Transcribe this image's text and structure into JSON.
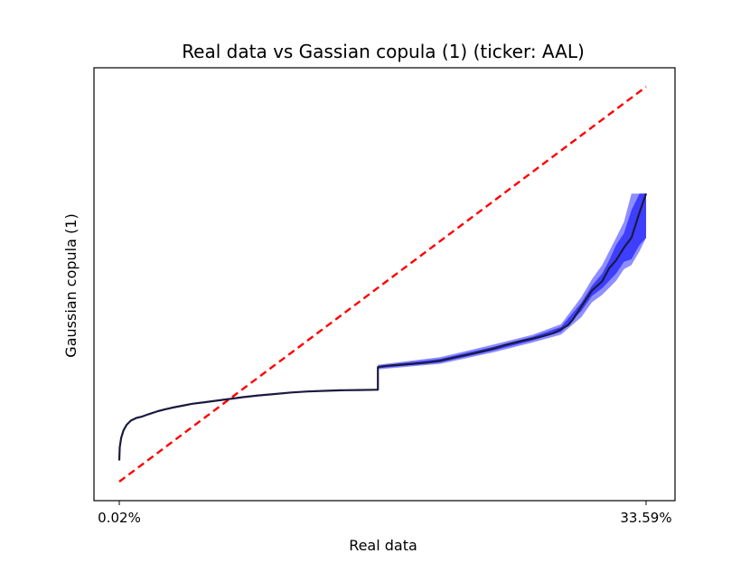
{
  "chart_data": {
    "type": "line",
    "title": "Real data vs Gassian copula (1) (ticker: AAL)",
    "xlabel": "Real data",
    "ylabel": "Gaussian copula (1)",
    "x_ticks": [
      "0.02%",
      "33.59%"
    ],
    "xlim": [
      0.0002,
      0.3359
    ],
    "ylim": [
      0.0002,
      0.3359
    ],
    "grid": false,
    "legend": "none",
    "colors": {
      "reference_line": "#ff0000",
      "qq_line": "#1a1a40",
      "band_inner": "#3a3aff",
      "band_outer": "#7a7aff"
    },
    "series": [
      {
        "kind": "reference",
        "style": "dashed",
        "x": [
          0.0002,
          0.3359
        ],
        "y": [
          0.0002,
          0.3359
        ]
      },
      {
        "kind": "qq",
        "x": [
          0.0002,
          0.0005,
          0.0014,
          0.0029,
          0.0049,
          0.0076,
          0.0109,
          0.0148,
          0.0188,
          0.0248,
          0.0303,
          0.0357,
          0.0418,
          0.0467,
          0.0551,
          0.0621,
          0.0698,
          0.0789,
          0.0887,
          0.0994,
          0.1099,
          0.1202,
          0.1308,
          0.1413,
          0.1523,
          0.1633,
          0.165,
          0.165,
          0.1703,
          0.179,
          0.1877,
          0.1959,
          0.2047,
          0.2128,
          0.2208,
          0.2299,
          0.2386,
          0.2464,
          0.255,
          0.2635,
          0.2706,
          0.2769,
          0.2817,
          0.2863,
          0.2897,
          0.2946,
          0.3014,
          0.3079,
          0.3124,
          0.3168,
          0.3218,
          0.3266,
          0.3317,
          0.3359
        ],
        "y": [
          0.0182,
          0.0294,
          0.0374,
          0.0438,
          0.0486,
          0.0521,
          0.0543,
          0.0556,
          0.0575,
          0.0601,
          0.062,
          0.0636,
          0.0651,
          0.0664,
          0.0678,
          0.069,
          0.0704,
          0.072,
          0.0735,
          0.0747,
          0.076,
          0.0769,
          0.0774,
          0.0779,
          0.0781,
          0.0783,
          0.0783,
          0.0976,
          0.0987,
          0.0996,
          0.1004,
          0.1014,
          0.103,
          0.1055,
          0.1077,
          0.1104,
          0.1133,
          0.1164,
          0.1193,
          0.1218,
          0.1241,
          0.1265,
          0.1298,
          0.1334,
          0.1389,
          0.1491,
          0.1627,
          0.1705,
          0.1817,
          0.1883,
          0.1991,
          0.2075,
          0.229,
          0.2451
        ]
      }
    ],
    "band": {
      "x": [
        0.165,
        0.2047,
        0.2386,
        0.2635,
        0.2817,
        0.2946,
        0.3014,
        0.3079,
        0.3124,
        0.3168,
        0.3218,
        0.3266,
        0.3317,
        0.3359
      ],
      "inner_low": [
        0.0966,
        0.1016,
        0.1117,
        0.1202,
        0.1276,
        0.1452,
        0.1581,
        0.1646,
        0.171,
        0.177,
        0.1871,
        0.1893,
        0.2014,
        0.2075
      ],
      "inner_high": [
        0.0986,
        0.1046,
        0.1149,
        0.1234,
        0.1317,
        0.1522,
        0.1668,
        0.177,
        0.1883,
        0.2014,
        0.2113,
        0.231,
        0.2451,
        0.2451
      ],
      "outer_low": [
        0.0956,
        0.1004,
        0.1101,
        0.1185,
        0.1252,
        0.14,
        0.1527,
        0.159,
        0.165,
        0.171,
        0.1808,
        0.1843,
        0.196,
        0.2075
      ],
      "outer_high": [
        0.0996,
        0.106,
        0.1167,
        0.125,
        0.1341,
        0.157,
        0.1723,
        0.1843,
        0.196,
        0.2075,
        0.221,
        0.2451,
        0.2451,
        0.2451
      ]
    }
  }
}
